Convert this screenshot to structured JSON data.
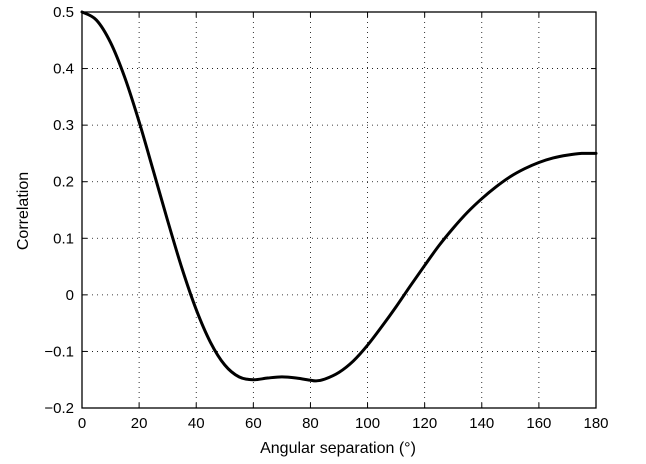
{
  "chart_data": {
    "type": "line",
    "xlabel": "Angular separation (°)",
    "ylabel": "Correlation",
    "xlim": [
      0,
      180
    ],
    "ylim": [
      -0.2,
      0.5
    ],
    "x_ticks": [
      0,
      20,
      40,
      60,
      80,
      100,
      120,
      140,
      160,
      180
    ],
    "y_ticks": [
      -0.2,
      -0.1,
      0,
      0.1,
      0.2,
      0.3,
      0.4,
      0.5
    ],
    "x_tick_labels": [
      "0",
      "20",
      "40",
      "60",
      "80",
      "100",
      "120",
      "140",
      "160",
      "180"
    ],
    "y_tick_labels": [
      "−0.2",
      "−0.1",
      "0",
      "0.1",
      "0.2",
      "0.3",
      "0.4",
      "0.5"
    ],
    "grid": true,
    "grid_style": "dotted",
    "line_color": "#000000",
    "series": [
      {
        "x": [
          0,
          5,
          10,
          15,
          20,
          25,
          30,
          35,
          40,
          45,
          50,
          55,
          60,
          65,
          70,
          75,
          80,
          82,
          85,
          90,
          95,
          100,
          105,
          110,
          115,
          120,
          125,
          130,
          135,
          140,
          145,
          150,
          155,
          160,
          165,
          170,
          175,
          180
        ],
        "y": [
          0.5,
          0.486,
          0.446,
          0.384,
          0.306,
          0.219,
          0.131,
          0.047,
          -0.026,
          -0.084,
          -0.124,
          -0.145,
          -0.15,
          -0.147,
          -0.145,
          -0.147,
          -0.151,
          -0.152,
          -0.149,
          -0.137,
          -0.117,
          -0.089,
          -0.056,
          -0.021,
          0.016,
          0.052,
          0.087,
          0.118,
          0.146,
          0.17,
          0.191,
          0.209,
          0.223,
          0.234,
          0.242,
          0.247,
          0.25,
          0.25
        ]
      }
    ]
  }
}
